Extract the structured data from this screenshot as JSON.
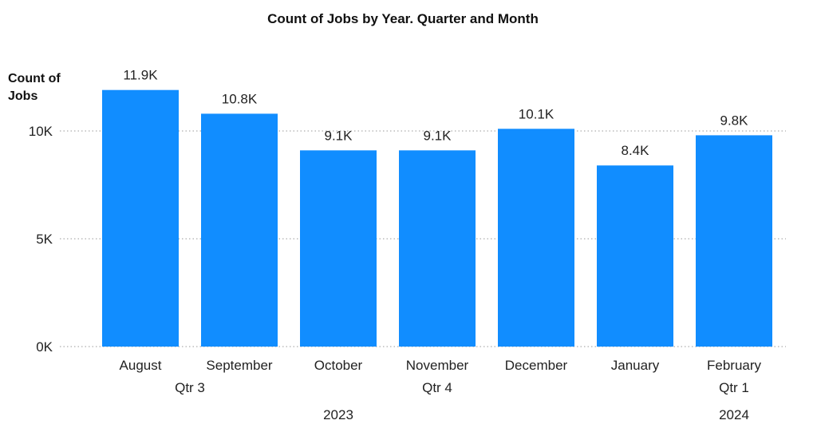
{
  "chart_data": {
    "type": "bar",
    "title": "Count of Jobs by Year. Quarter and Month",
    "ylabel_lines": [
      "Count of",
      "Jobs"
    ],
    "xlabel": "",
    "ylim": [
      0,
      12000
    ],
    "yticks": [
      {
        "value": 0,
        "label": "0K"
      },
      {
        "value": 5000,
        "label": "5K"
      },
      {
        "value": 10000,
        "label": "10K"
      }
    ],
    "grid": true,
    "bar_color": "#118DFF",
    "categories": [
      "August",
      "September",
      "October",
      "November",
      "December",
      "January",
      "February"
    ],
    "values": [
      11900,
      10800,
      9100,
      9100,
      10100,
      8400,
      9800
    ],
    "data_labels": [
      "11.9K",
      "10.8K",
      "9.1K",
      "9.1K",
      "10.1K",
      "8.4K",
      "9.8K"
    ],
    "quarters": [
      {
        "label": "Qtr 3",
        "from": 0,
        "to": 1
      },
      {
        "label": "Qtr 4",
        "from": 2,
        "to": 4
      },
      {
        "label": "Qtr 1",
        "from": 6,
        "to": 6
      }
    ],
    "years": [
      {
        "label": "2023",
        "from": 0,
        "to": 4
      },
      {
        "label": "2024",
        "from": 6,
        "to": 6
      }
    ]
  }
}
